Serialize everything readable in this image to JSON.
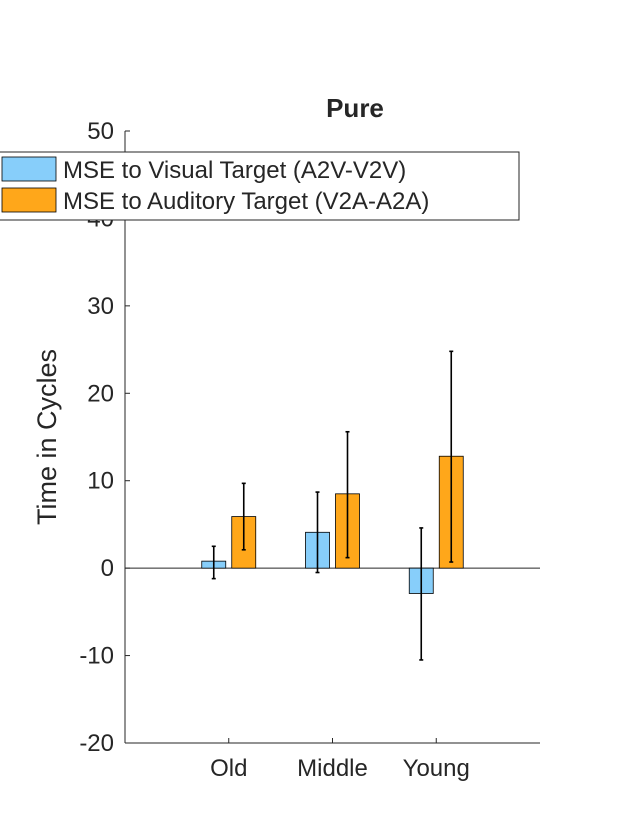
{
  "chart_data": {
    "type": "bar",
    "title": "Pure",
    "xlabel": "",
    "ylabel": "Time in Cycles",
    "categories": [
      "Old",
      "Middle",
      "Young"
    ],
    "ylim": [
      -20,
      50
    ],
    "yticks": [
      -20,
      -10,
      0,
      10,
      20,
      30,
      40,
      50
    ],
    "grid": false,
    "legend_position": "top-left",
    "series": [
      {
        "name": "MSE to Visual Target (A2V-V2V)",
        "color": "#87cefa",
        "values": [
          0.8,
          4.1,
          -2.9
        ],
        "error_low": [
          -1.2,
          -0.5,
          -10.5
        ],
        "error_high": [
          2.5,
          8.7,
          4.6
        ]
      },
      {
        "name": "MSE to Auditory Target (V2A-A2A)",
        "color": "#ffa71a",
        "values": [
          5.9,
          8.5,
          12.8
        ],
        "error_low": [
          2.1,
          1.2,
          0.7
        ],
        "error_high": [
          9.7,
          15.6,
          24.8
        ]
      }
    ]
  }
}
